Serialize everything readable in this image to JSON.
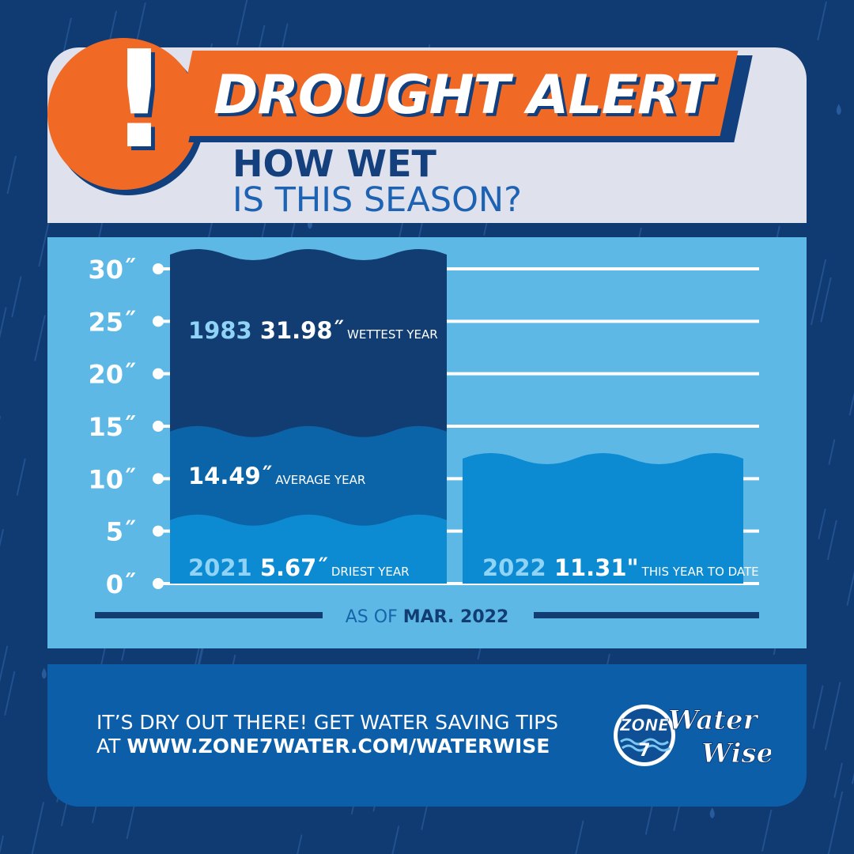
{
  "header": {
    "alert_symbol": "!",
    "banner": "DROUGHT ALERT",
    "title_line1": "HOW WET",
    "title_line2": "IS THIS SEASON?"
  },
  "chart_data": {
    "type": "bar",
    "ylim": [
      0,
      30
    ],
    "y_ticks": [
      {
        "value": 0,
        "label": "0˝"
      },
      {
        "value": 5,
        "label": "5˝"
      },
      {
        "value": 10,
        "label": "10˝"
      },
      {
        "value": 15,
        "label": "15˝"
      },
      {
        "value": 20,
        "label": "20˝"
      },
      {
        "value": 25,
        "label": "25˝"
      },
      {
        "value": 30,
        "label": "30˝"
      }
    ],
    "stacked_bar": [
      {
        "year": "1983",
        "value": 31.98,
        "value_label": "31.98˝",
        "note": "WETTEST YEAR"
      },
      {
        "year": "",
        "value": 14.49,
        "value_label": "14.49˝",
        "note": "AVERAGE YEAR"
      },
      {
        "year": "2021",
        "value": 5.67,
        "value_label": "5.67˝",
        "note": "DRIEST YEAR"
      }
    ],
    "current_bar": {
      "year": "2022",
      "value": 11.31,
      "value_label": "11.31\"",
      "note": "THIS YEAR TO DATE"
    },
    "caption_prefix": "AS OF",
    "caption_date": "MAR. 2022",
    "grid": true,
    "colors": {
      "wettest": "#123d72",
      "average": "#0c64a8",
      "driest": "#0c8ad2",
      "current": "#0c8ad2",
      "gridline": "#ffffff",
      "year_text": "#8fd3f7",
      "axis_text": "#ffffff",
      "caption_rule": "#123d72",
      "caption_prefix": "#1565a8",
      "caption_date": "#123d72"
    }
  },
  "footer": {
    "line1": "IT’S DRY OUT THERE! GET WATER SAVING TIPS",
    "line2_prefix": "AT",
    "line2_link": "WWW.ZONE7WATER.COM/WATERWISE"
  },
  "logo": {
    "zone_word": "ZONE",
    "zone_number": "7",
    "script_line1": "Water",
    "script_line2": "Wise"
  },
  "colors": {
    "background": "#0f3a72",
    "top_card": "#dfe2ec",
    "chart_card": "#5db8e6",
    "footer_card": "#0d5ea8",
    "accent_orange": "#f06a25",
    "navy": "#14407d"
  }
}
